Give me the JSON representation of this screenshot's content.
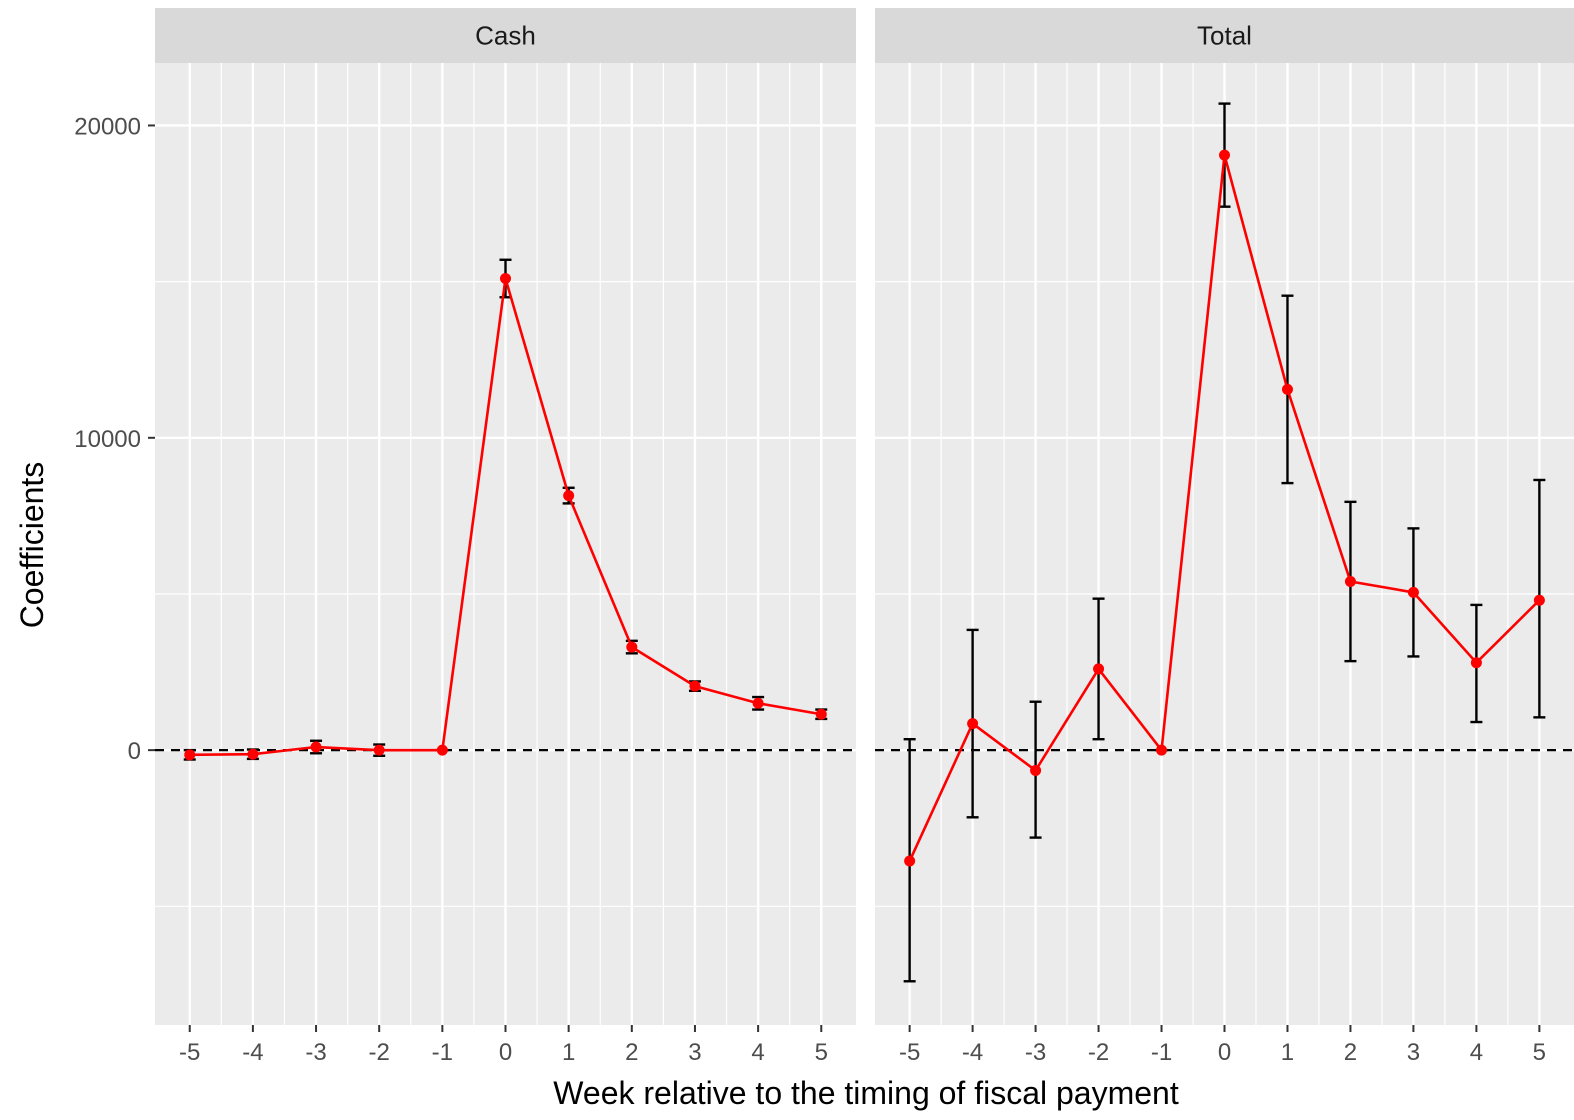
{
  "chart_data": {
    "type": "line",
    "xlabel": "Week relative to the timing of fiscal payment",
    "ylabel": "Coefficients",
    "x": [
      -5,
      -4,
      -3,
      -2,
      -1,
      0,
      1,
      2,
      3,
      4,
      5
    ],
    "xlim": [
      -5.55,
      5.55
    ],
    "ylim": [
      -8800,
      22000
    ],
    "yticks": [
      0,
      10000,
      20000
    ],
    "reference_line": {
      "y": 0,
      "style": "dashed",
      "color": "#000000"
    },
    "series_color": "#ff0000",
    "errorbar_color": "#000000",
    "grid": true,
    "facets": [
      {
        "label": "Cash",
        "y": [
          -150,
          -130,
          100,
          0,
          0,
          15100,
          8150,
          3300,
          2050,
          1500,
          1150
        ],
        "lo": [
          -300,
          -280,
          -100,
          -180,
          0,
          14500,
          7900,
          3100,
          1900,
          1300,
          1000
        ],
        "hi": [
          0,
          20,
          300,
          180,
          0,
          15700,
          8400,
          3500,
          2200,
          1700,
          1300
        ]
      },
      {
        "label": "Total",
        "y": [
          -3550,
          850,
          -650,
          2600,
          0,
          19050,
          11550,
          5400,
          5050,
          2800,
          4800
        ],
        "lo": [
          -7400,
          -2150,
          -2800,
          350,
          0,
          17400,
          8550,
          2850,
          3000,
          900,
          1050
        ],
        "hi": [
          350,
          3850,
          1550,
          4850,
          0,
          20700,
          14550,
          7950,
          7100,
          4650,
          8650
        ]
      }
    ]
  }
}
